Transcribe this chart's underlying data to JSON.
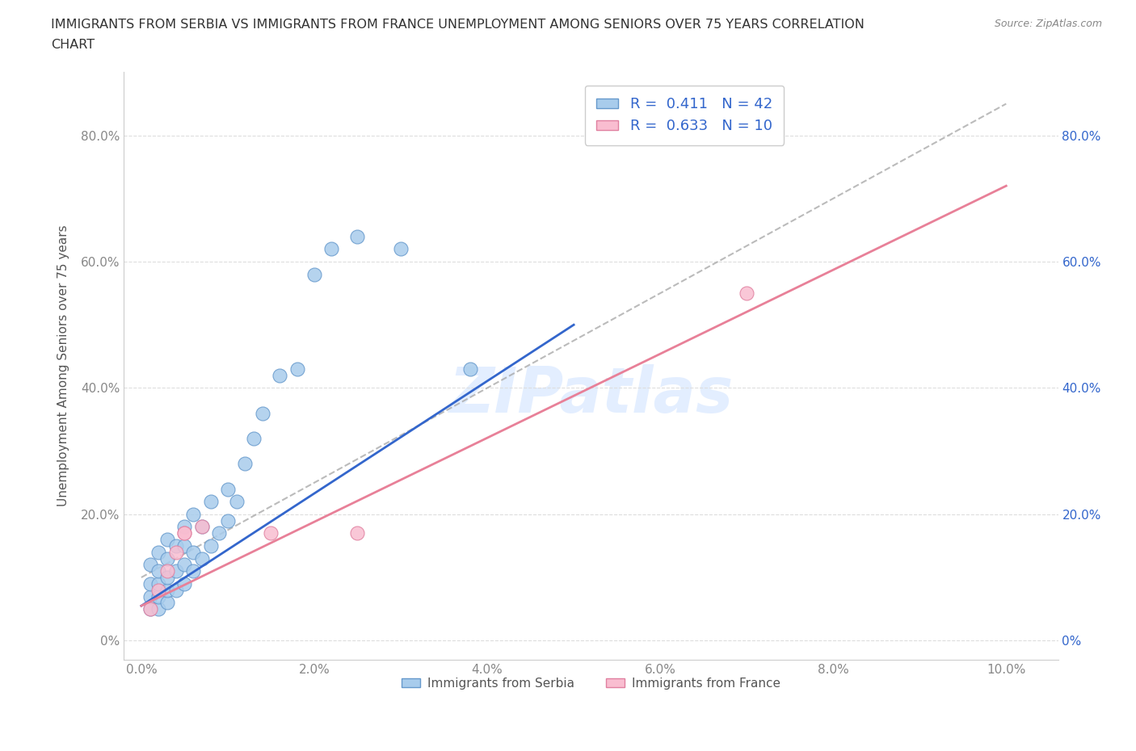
{
  "title": "IMMIGRANTS FROM SERBIA VS IMMIGRANTS FROM FRANCE UNEMPLOYMENT AMONG SENIORS OVER 75 YEARS CORRELATION\nCHART",
  "source": "Source: ZipAtlas.com",
  "ylabel": "Unemployment Among Seniors over 75 years",
  "x_ticks": [
    0.0,
    0.02,
    0.04,
    0.06,
    0.08,
    0.1
  ],
  "x_tick_labels": [
    "0.0%",
    "2.0%",
    "4.0%",
    "6.0%",
    "8.0%",
    "10.0%"
  ],
  "y_ticks": [
    0.0,
    0.2,
    0.4,
    0.6,
    0.8
  ],
  "y_tick_labels": [
    "0%",
    "20.0%",
    "40.0%",
    "60.0%",
    "80.0%"
  ],
  "xlim": [
    -0.002,
    0.106
  ],
  "ylim": [
    -0.03,
    0.9
  ],
  "serbia_color": "#A8CCEC",
  "france_color": "#F9BDD0",
  "serbia_edge": "#6699CC",
  "france_edge": "#E080A0",
  "trend_serbia_color": "#3366CC",
  "trend_france_color": "#E88098",
  "R_serbia": 0.411,
  "N_serbia": 42,
  "R_france": 0.633,
  "N_france": 10,
  "legend_text_color": "#3366CC",
  "watermark": "ZIPatlas",
  "background_color": "#ffffff",
  "serbia_x": [
    0.001,
    0.001,
    0.001,
    0.001,
    0.002,
    0.002,
    0.002,
    0.002,
    0.002,
    0.003,
    0.003,
    0.003,
    0.003,
    0.003,
    0.004,
    0.004,
    0.004,
    0.005,
    0.005,
    0.005,
    0.005,
    0.006,
    0.006,
    0.006,
    0.007,
    0.007,
    0.008,
    0.008,
    0.009,
    0.01,
    0.01,
    0.011,
    0.012,
    0.013,
    0.014,
    0.016,
    0.018,
    0.02,
    0.022,
    0.025,
    0.03,
    0.038
  ],
  "serbia_y": [
    0.05,
    0.07,
    0.09,
    0.12,
    0.05,
    0.07,
    0.09,
    0.11,
    0.14,
    0.06,
    0.08,
    0.1,
    0.13,
    0.16,
    0.08,
    0.11,
    0.15,
    0.09,
    0.12,
    0.15,
    0.18,
    0.11,
    0.14,
    0.2,
    0.13,
    0.18,
    0.15,
    0.22,
    0.17,
    0.19,
    0.24,
    0.22,
    0.28,
    0.32,
    0.36,
    0.42,
    0.43,
    0.58,
    0.62,
    0.64,
    0.62,
    0.43
  ],
  "france_x": [
    0.001,
    0.002,
    0.003,
    0.004,
    0.005,
    0.005,
    0.007,
    0.015,
    0.025,
    0.07
  ],
  "france_y": [
    0.05,
    0.08,
    0.11,
    0.14,
    0.17,
    0.17,
    0.18,
    0.17,
    0.17,
    0.55
  ],
  "trend_serbia_x0": 0.0,
  "trend_serbia_y0": 0.055,
  "trend_serbia_x1": 0.05,
  "trend_serbia_y1": 0.5,
  "trend_france_x0": 0.0,
  "trend_france_y0": 0.055,
  "trend_france_x1": 0.1,
  "trend_france_y1": 0.72,
  "ref_line_x0": 0.0,
  "ref_line_y0": 0.1,
  "ref_line_x1": 0.1,
  "ref_line_y1": 0.85
}
